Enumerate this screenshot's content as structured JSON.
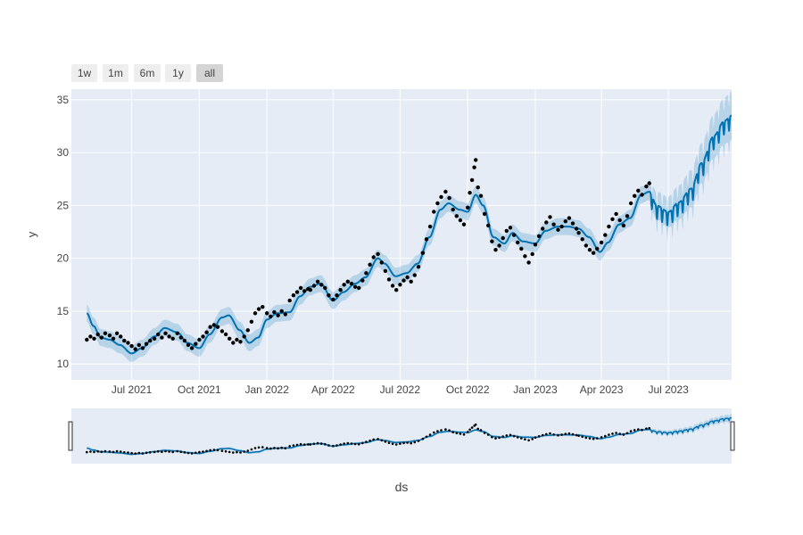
{
  "chart_data": {
    "type": "line",
    "xlabel": "ds",
    "ylabel": "y",
    "xlim": [
      "2021-04-10",
      "2023-09-25"
    ],
    "ylim": [
      8.5,
      36
    ],
    "y_ticks": [
      10,
      15,
      20,
      25,
      30,
      35
    ],
    "x_ticks": [
      {
        "date": "2021-07-01",
        "label": "Jul 2021"
      },
      {
        "date": "2021-10-01",
        "label": "Oct 2021"
      },
      {
        "date": "2022-01-01",
        "label": "Jan 2022"
      },
      {
        "date": "2022-04-01",
        "label": "Apr 2022"
      },
      {
        "date": "2022-07-01",
        "label": "Jul 2022"
      },
      {
        "date": "2022-10-01",
        "label": "Oct 2022"
      },
      {
        "date": "2023-01-01",
        "label": "Jan 2023"
      },
      {
        "date": "2023-04-01",
        "label": "Apr 2023"
      },
      {
        "date": "2023-07-01",
        "label": "Jul 2023"
      }
    ],
    "grid": true,
    "legend": "none",
    "range_selector": [
      {
        "label": "1w",
        "active": false
      },
      {
        "label": "1m",
        "active": false
      },
      {
        "label": "6m",
        "active": false
      },
      {
        "label": "1y",
        "active": false
      },
      {
        "label": "all",
        "active": true
      }
    ],
    "range_slider": true,
    "observed_end": "2023-06-05",
    "colors": {
      "plot_bg": "#e5ecf6",
      "grid": "#ffffff",
      "forecast_line": "#0072b2",
      "uncertainty": "rgba(0,114,178,0.2)",
      "points": "#000000",
      "btn_bg": "#eeeeee",
      "btn_active_bg": "#d4d4d4",
      "text": "#444444"
    },
    "series": [
      {
        "type": "scatter",
        "points": [
          [
            "2021-05-01",
            12.3
          ],
          [
            "2021-05-06",
            12.6
          ],
          [
            "2021-05-11",
            12.4
          ],
          [
            "2021-05-16",
            12.8
          ],
          [
            "2021-05-21",
            12.5
          ],
          [
            "2021-05-26",
            12.9
          ],
          [
            "2021-06-01",
            12.7
          ],
          [
            "2021-06-06",
            12.4
          ],
          [
            "2021-06-11",
            12.9
          ],
          [
            "2021-06-16",
            12.6
          ],
          [
            "2021-06-21",
            12.2
          ],
          [
            "2021-06-26",
            12.0
          ],
          [
            "2021-07-01",
            11.7
          ],
          [
            "2021-07-06",
            11.4
          ],
          [
            "2021-07-11",
            11.8
          ],
          [
            "2021-07-16",
            11.5
          ],
          [
            "2021-07-21",
            11.9
          ],
          [
            "2021-07-26",
            12.2
          ],
          [
            "2021-08-01",
            12.4
          ],
          [
            "2021-08-06",
            12.8
          ],
          [
            "2021-08-11",
            12.5
          ],
          [
            "2021-08-16",
            12.9
          ],
          [
            "2021-08-21",
            12.6
          ],
          [
            "2021-08-26",
            12.4
          ],
          [
            "2021-09-01",
            12.9
          ],
          [
            "2021-09-06",
            12.5
          ],
          [
            "2021-09-11",
            12.2
          ],
          [
            "2021-09-16",
            11.8
          ],
          [
            "2021-09-21",
            11.5
          ],
          [
            "2021-09-26",
            11.9
          ],
          [
            "2021-10-01",
            12.3
          ],
          [
            "2021-10-06",
            12.6
          ],
          [
            "2021-10-11",
            13.0
          ],
          [
            "2021-10-16",
            13.5
          ],
          [
            "2021-10-21",
            13.7
          ],
          [
            "2021-10-26",
            13.5
          ],
          [
            "2021-11-01",
            13.1
          ],
          [
            "2021-11-06",
            12.8
          ],
          [
            "2021-11-11",
            12.4
          ],
          [
            "2021-11-16",
            12.0
          ],
          [
            "2021-11-21",
            12.3
          ],
          [
            "2021-11-26",
            12.1
          ],
          [
            "2021-12-01",
            12.6
          ],
          [
            "2021-12-06",
            13.2
          ],
          [
            "2021-12-11",
            14.0
          ],
          [
            "2021-12-16",
            14.8
          ],
          [
            "2021-12-21",
            15.2
          ],
          [
            "2021-12-26",
            15.4
          ],
          [
            "2022-01-01",
            14.8
          ],
          [
            "2022-01-06",
            14.5
          ],
          [
            "2022-01-11",
            14.9
          ],
          [
            "2022-01-16",
            14.6
          ],
          [
            "2022-01-21",
            15.0
          ],
          [
            "2022-01-26",
            14.7
          ],
          [
            "2022-02-01",
            16.0
          ],
          [
            "2022-02-06",
            16.5
          ],
          [
            "2022-02-11",
            16.8
          ],
          [
            "2022-02-16",
            17.2
          ],
          [
            "2022-02-21",
            16.9
          ],
          [
            "2022-02-26",
            17.1
          ],
          [
            "2022-03-01",
            17.0
          ],
          [
            "2022-03-06",
            17.4
          ],
          [
            "2022-03-11",
            17.8
          ],
          [
            "2022-03-16",
            17.5
          ],
          [
            "2022-03-21",
            17.2
          ],
          [
            "2022-03-26",
            16.5
          ],
          [
            "2022-04-01",
            16.1
          ],
          [
            "2022-04-06",
            16.5
          ],
          [
            "2022-04-11",
            17.0
          ],
          [
            "2022-04-16",
            17.5
          ],
          [
            "2022-04-21",
            17.8
          ],
          [
            "2022-04-26",
            17.6
          ],
          [
            "2022-05-01",
            17.3
          ],
          [
            "2022-05-06",
            17.2
          ],
          [
            "2022-05-11",
            17.9
          ],
          [
            "2022-05-16",
            18.6
          ],
          [
            "2022-05-21",
            19.4
          ],
          [
            "2022-05-26",
            20.1
          ],
          [
            "2022-06-01",
            20.4
          ],
          [
            "2022-06-06",
            19.6
          ],
          [
            "2022-06-11",
            18.8
          ],
          [
            "2022-06-16",
            18.0
          ],
          [
            "2022-06-21",
            17.4
          ],
          [
            "2022-06-26",
            17.0
          ],
          [
            "2022-07-01",
            17.5
          ],
          [
            "2022-07-06",
            17.9
          ],
          [
            "2022-07-11",
            18.2
          ],
          [
            "2022-07-16",
            17.8
          ],
          [
            "2022-07-21",
            18.4
          ],
          [
            "2022-07-26",
            19.2
          ],
          [
            "2022-08-01",
            20.5
          ],
          [
            "2022-08-06",
            21.8
          ],
          [
            "2022-08-11",
            23.0
          ],
          [
            "2022-08-16",
            24.4
          ],
          [
            "2022-08-21",
            25.2
          ],
          [
            "2022-08-26",
            25.8
          ],
          [
            "2022-09-01",
            26.3
          ],
          [
            "2022-09-06",
            25.7
          ],
          [
            "2022-09-11",
            24.6
          ],
          [
            "2022-09-16",
            24.0
          ],
          [
            "2022-09-21",
            23.6
          ],
          [
            "2022-09-26",
            23.2
          ],
          [
            "2022-10-01",
            24.8
          ],
          [
            "2022-10-04",
            26.2
          ],
          [
            "2022-10-07",
            27.4
          ],
          [
            "2022-10-10",
            28.6
          ],
          [
            "2022-10-12",
            29.3
          ],
          [
            "2022-10-15",
            26.7
          ],
          [
            "2022-10-19",
            25.9
          ],
          [
            "2022-10-24",
            24.2
          ],
          [
            "2022-10-29",
            23.1
          ],
          [
            "2022-11-03",
            21.6
          ],
          [
            "2022-11-08",
            20.8
          ],
          [
            "2022-11-13",
            21.2
          ],
          [
            "2022-11-18",
            21.9
          ],
          [
            "2022-11-23",
            22.6
          ],
          [
            "2022-11-28",
            22.9
          ],
          [
            "2022-12-03",
            22.2
          ],
          [
            "2022-12-08",
            21.5
          ],
          [
            "2022-12-13",
            20.9
          ],
          [
            "2022-12-18",
            20.2
          ],
          [
            "2022-12-23",
            19.6
          ],
          [
            "2022-12-28",
            20.4
          ],
          [
            "2023-01-01",
            21.3
          ],
          [
            "2023-01-06",
            22.1
          ],
          [
            "2023-01-11",
            22.8
          ],
          [
            "2023-01-16",
            23.4
          ],
          [
            "2023-01-21",
            23.9
          ],
          [
            "2023-01-26",
            23.2
          ],
          [
            "2023-02-01",
            22.7
          ],
          [
            "2023-02-06",
            23.0
          ],
          [
            "2023-02-11",
            23.5
          ],
          [
            "2023-02-16",
            23.8
          ],
          [
            "2023-02-21",
            23.3
          ],
          [
            "2023-02-26",
            22.8
          ],
          [
            "2023-03-01",
            22.4
          ],
          [
            "2023-03-06",
            21.8
          ],
          [
            "2023-03-11",
            21.2
          ],
          [
            "2023-03-16",
            20.8
          ],
          [
            "2023-03-21",
            20.5
          ],
          [
            "2023-03-26",
            20.9
          ],
          [
            "2023-04-01",
            21.5
          ],
          [
            "2023-04-06",
            22.2
          ],
          [
            "2023-04-11",
            23.0
          ],
          [
            "2023-04-16",
            23.7
          ],
          [
            "2023-04-21",
            24.2
          ],
          [
            "2023-04-26",
            23.6
          ],
          [
            "2023-05-01",
            23.1
          ],
          [
            "2023-05-06",
            24.0
          ],
          [
            "2023-05-11",
            25.2
          ],
          [
            "2023-05-16",
            25.9
          ],
          [
            "2023-05-21",
            26.4
          ],
          [
            "2023-05-26",
            26.0
          ],
          [
            "2023-06-01",
            26.8
          ],
          [
            "2023-06-05",
            27.1
          ]
        ]
      },
      {
        "type": "line",
        "name": "yhat",
        "points": [
          [
            "2021-05-01",
            14.8
          ],
          [
            "2021-05-10",
            13.6
          ],
          [
            "2021-05-20",
            12.5
          ],
          [
            "2021-06-01",
            12.3
          ],
          [
            "2021-06-15",
            11.8
          ],
          [
            "2021-07-01",
            11.0
          ],
          [
            "2021-07-15",
            11.5
          ],
          [
            "2021-08-01",
            12.6
          ],
          [
            "2021-08-15",
            13.4
          ],
          [
            "2021-09-01",
            13.0
          ],
          [
            "2021-09-15",
            12.0
          ],
          [
            "2021-10-01",
            11.5
          ],
          [
            "2021-10-15",
            12.8
          ],
          [
            "2021-11-01",
            14.4
          ],
          [
            "2021-11-10",
            14.6
          ],
          [
            "2021-11-25",
            13.2
          ],
          [
            "2021-12-08",
            12.0
          ],
          [
            "2021-12-20",
            12.5
          ],
          [
            "2022-01-01",
            14.2
          ],
          [
            "2022-01-15",
            14.8
          ],
          [
            "2022-02-01",
            14.9
          ],
          [
            "2022-02-15",
            16.4
          ],
          [
            "2022-03-01",
            17.3
          ],
          [
            "2022-03-15",
            17.6
          ],
          [
            "2022-04-01",
            16.0
          ],
          [
            "2022-04-15",
            16.8
          ],
          [
            "2022-05-01",
            17.6
          ],
          [
            "2022-05-15",
            18.2
          ],
          [
            "2022-06-01",
            20.0
          ],
          [
            "2022-06-10",
            19.5
          ],
          [
            "2022-06-25",
            18.3
          ],
          [
            "2022-07-10",
            18.6
          ],
          [
            "2022-07-25",
            19.5
          ],
          [
            "2022-08-10",
            22.0
          ],
          [
            "2022-08-25",
            24.6
          ],
          [
            "2022-09-05",
            25.2
          ],
          [
            "2022-09-20",
            24.6
          ],
          [
            "2022-10-01",
            24.4
          ],
          [
            "2022-10-12",
            26.0
          ],
          [
            "2022-10-22",
            25.0
          ],
          [
            "2022-11-05",
            22.0
          ],
          [
            "2022-11-20",
            21.4
          ],
          [
            "2022-12-01",
            22.4
          ],
          [
            "2022-12-15",
            21.6
          ],
          [
            "2023-01-01",
            21.4
          ],
          [
            "2023-01-15",
            22.6
          ],
          [
            "2023-02-01",
            23.0
          ],
          [
            "2023-02-15",
            23.0
          ],
          [
            "2023-03-01",
            22.8
          ],
          [
            "2023-03-15",
            22.0
          ],
          [
            "2023-03-30",
            20.6
          ],
          [
            "2023-04-10",
            21.5
          ],
          [
            "2023-04-25",
            23.2
          ],
          [
            "2023-05-10",
            23.8
          ],
          [
            "2023-05-25",
            26.0
          ],
          [
            "2023-06-05",
            26.3
          ],
          [
            "2023-06-15",
            25.0
          ],
          [
            "2023-07-01",
            24.4
          ],
          [
            "2023-07-15",
            25.3
          ],
          [
            "2023-08-01",
            26.6
          ],
          [
            "2023-08-15",
            29.0
          ],
          [
            "2023-09-01",
            31.6
          ],
          [
            "2023-09-15",
            33.0
          ],
          [
            "2023-09-25",
            33.5
          ]
        ]
      }
    ],
    "uncertainty_band": {
      "observed_half_width": 0.8,
      "forecast_half_width_start": 1.2,
      "forecast_half_width_end": 2.3
    },
    "forecast_weekly_amplitude": 1.3
  }
}
